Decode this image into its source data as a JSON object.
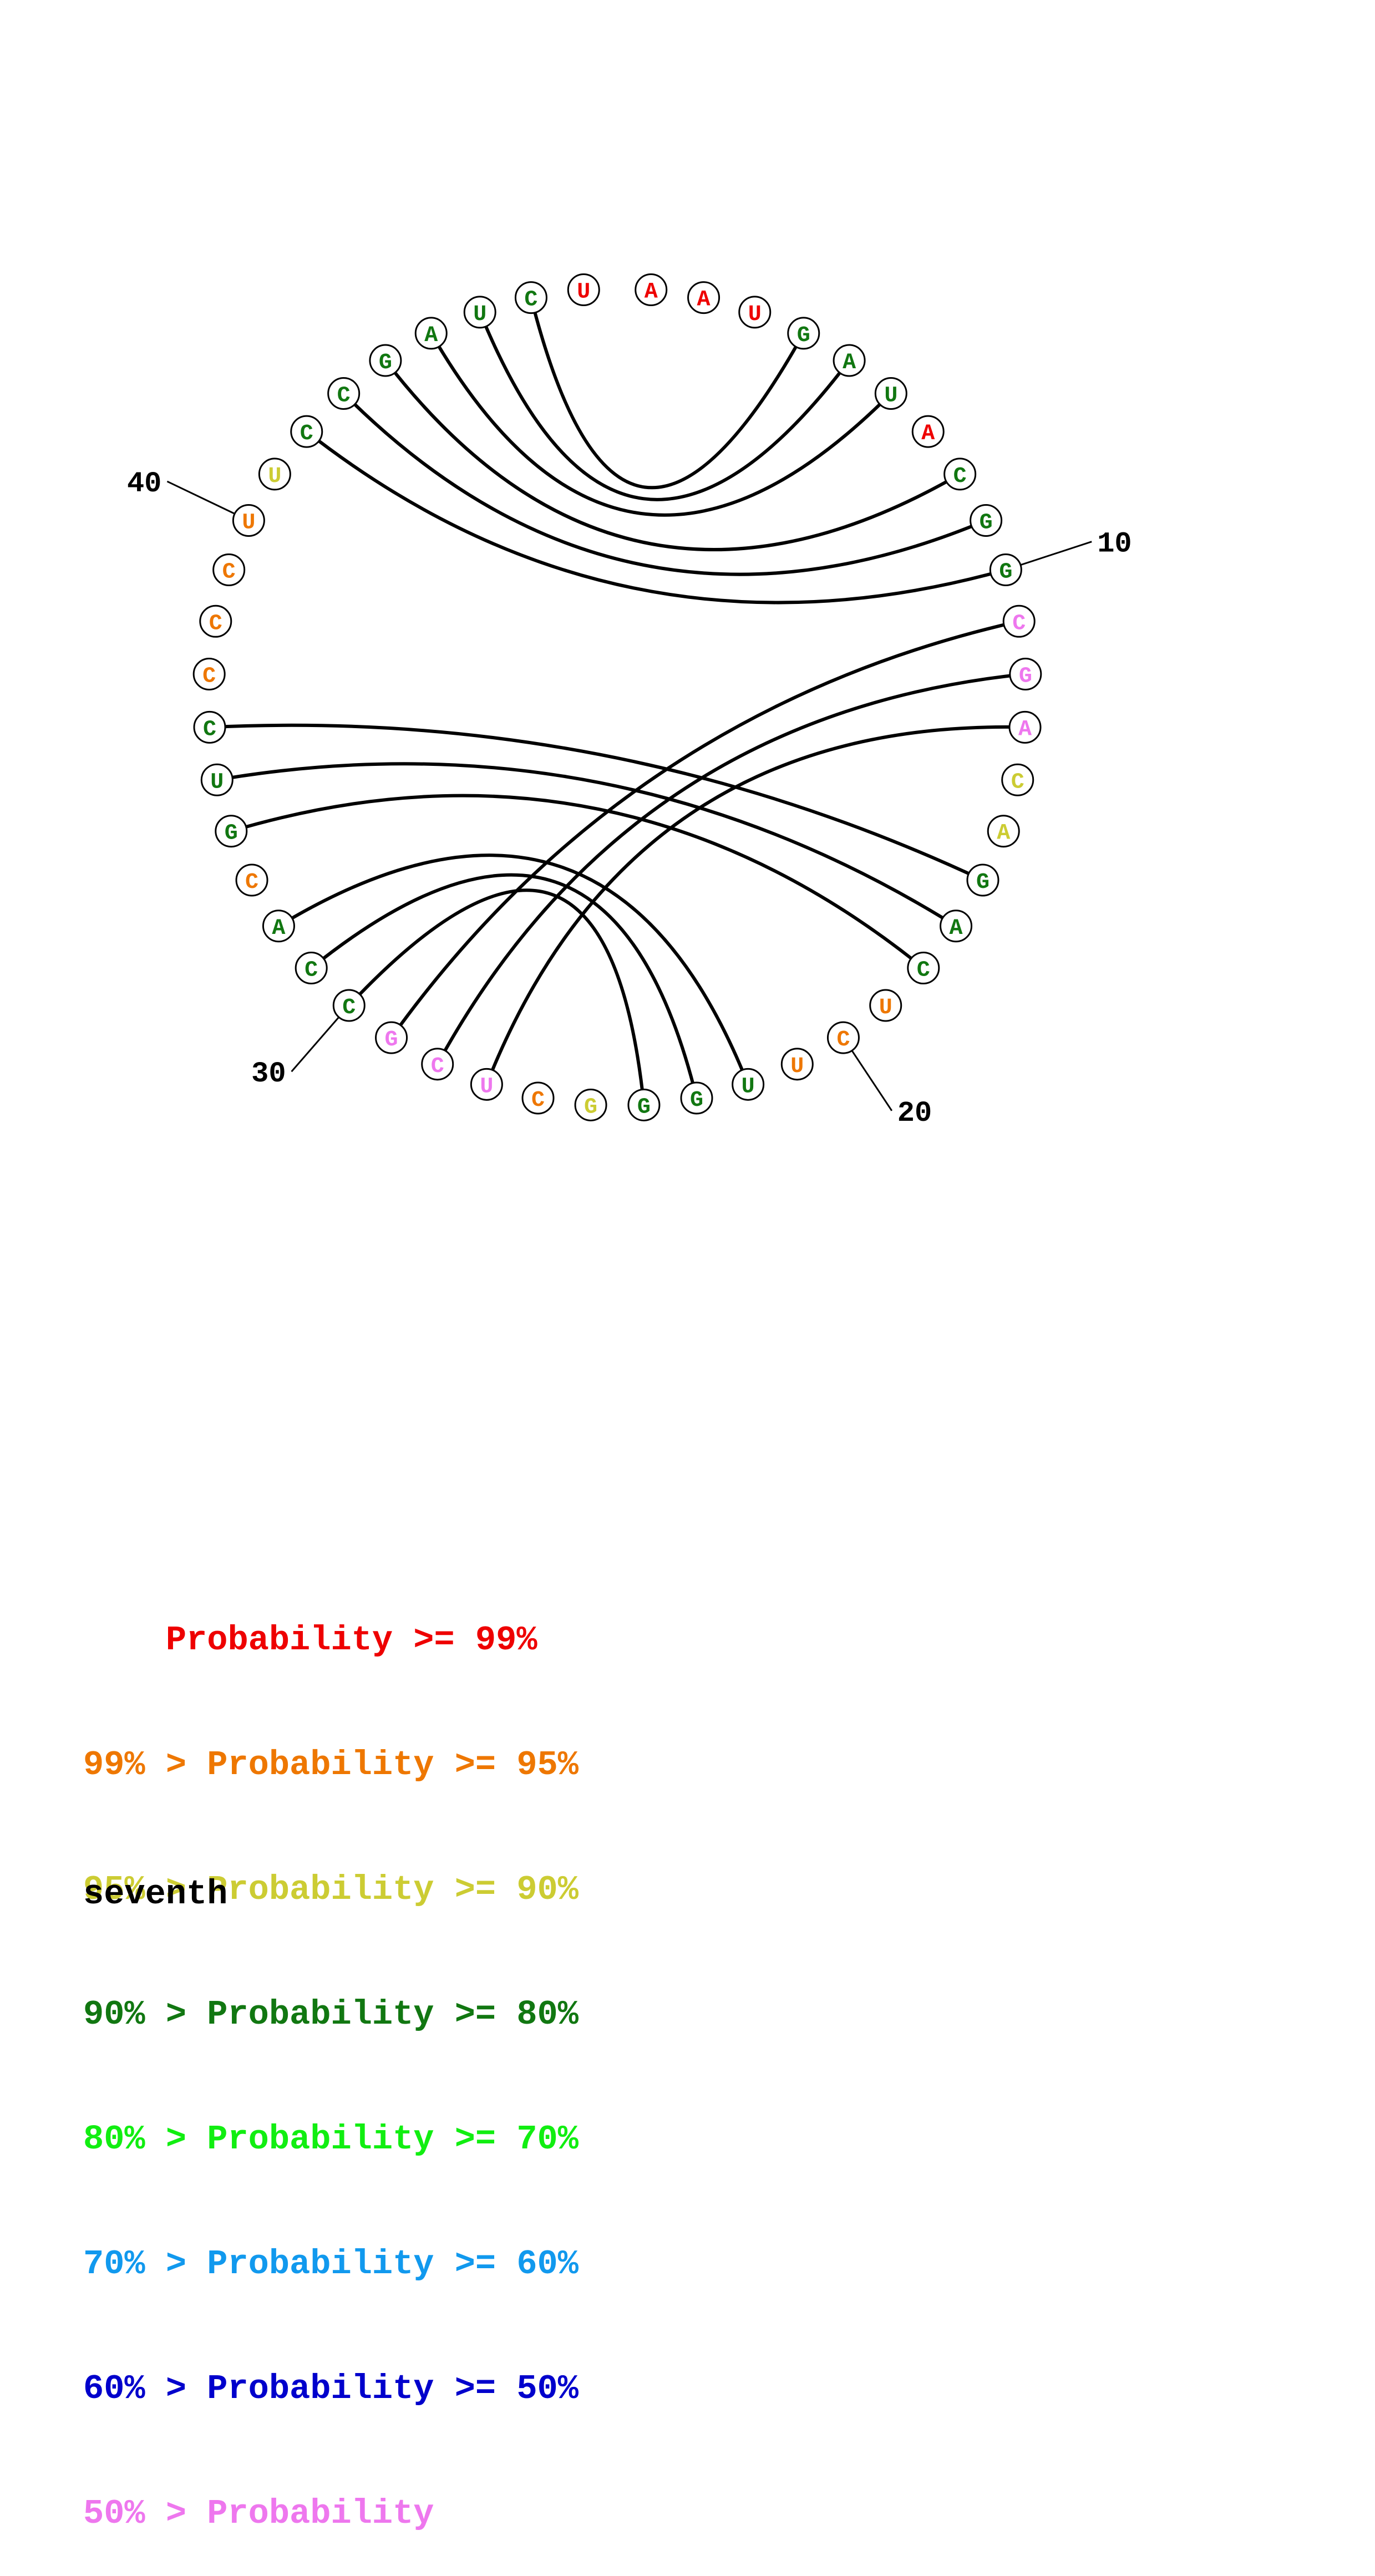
{
  "colors": {
    "p99": "#ee0000",
    "p95": "#ee7700",
    "p90": "#cccc33",
    "p80": "#117711",
    "p70": "#11ee11",
    "p60": "#1199ee",
    "p50": "#0000cc",
    "plow": "#ee77ee"
  },
  "sequence": [
    {
      "n": 1,
      "base": "A",
      "prob": "p99"
    },
    {
      "n": 2,
      "base": "A",
      "prob": "p99"
    },
    {
      "n": 3,
      "base": "U",
      "prob": "p99"
    },
    {
      "n": 4,
      "base": "G",
      "prob": "p80"
    },
    {
      "n": 5,
      "base": "A",
      "prob": "p80"
    },
    {
      "n": 6,
      "base": "U",
      "prob": "p80"
    },
    {
      "n": 7,
      "base": "A",
      "prob": "p99"
    },
    {
      "n": 8,
      "base": "C",
      "prob": "p80"
    },
    {
      "n": 9,
      "base": "G",
      "prob": "p80"
    },
    {
      "n": 10,
      "base": "G",
      "prob": "p80"
    },
    {
      "n": 11,
      "base": "C",
      "prob": "plow"
    },
    {
      "n": 12,
      "base": "G",
      "prob": "plow"
    },
    {
      "n": 13,
      "base": "A",
      "prob": "plow"
    },
    {
      "n": 14,
      "base": "C",
      "prob": "p90"
    },
    {
      "n": 15,
      "base": "A",
      "prob": "p90"
    },
    {
      "n": 16,
      "base": "G",
      "prob": "p80"
    },
    {
      "n": 17,
      "base": "A",
      "prob": "p80"
    },
    {
      "n": 18,
      "base": "C",
      "prob": "p80"
    },
    {
      "n": 19,
      "base": "U",
      "prob": "p95"
    },
    {
      "n": 20,
      "base": "C",
      "prob": "p95"
    },
    {
      "n": 21,
      "base": "U",
      "prob": "p95"
    },
    {
      "n": 22,
      "base": "U",
      "prob": "p80"
    },
    {
      "n": 23,
      "base": "G",
      "prob": "p80"
    },
    {
      "n": 24,
      "base": "G",
      "prob": "p80"
    },
    {
      "n": 25,
      "base": "G",
      "prob": "p90"
    },
    {
      "n": 26,
      "base": "C",
      "prob": "p95"
    },
    {
      "n": 27,
      "base": "U",
      "prob": "plow"
    },
    {
      "n": 28,
      "base": "C",
      "prob": "plow"
    },
    {
      "n": 29,
      "base": "G",
      "prob": "plow"
    },
    {
      "n": 30,
      "base": "C",
      "prob": "p80"
    },
    {
      "n": 31,
      "base": "C",
      "prob": "p80"
    },
    {
      "n": 32,
      "base": "A",
      "prob": "p80"
    },
    {
      "n": 33,
      "base": "C",
      "prob": "p95"
    },
    {
      "n": 34,
      "base": "G",
      "prob": "p80"
    },
    {
      "n": 35,
      "base": "U",
      "prob": "p80"
    },
    {
      "n": 36,
      "base": "C",
      "prob": "p80"
    },
    {
      "n": 37,
      "base": "C",
      "prob": "p95"
    },
    {
      "n": 38,
      "base": "C",
      "prob": "p95"
    },
    {
      "n": 39,
      "base": "C",
      "prob": "p95"
    },
    {
      "n": 40,
      "base": "U",
      "prob": "p95"
    },
    {
      "n": 41,
      "base": "U",
      "prob": "p90"
    },
    {
      "n": 42,
      "base": "C",
      "prob": "p80"
    },
    {
      "n": 43,
      "base": "C",
      "prob": "p80"
    },
    {
      "n": 44,
      "base": "G",
      "prob": "p80"
    },
    {
      "n": 45,
      "base": "A",
      "prob": "p80"
    },
    {
      "n": 46,
      "base": "U",
      "prob": "p80"
    },
    {
      "n": 47,
      "base": "C",
      "prob": "p80"
    },
    {
      "n": 48,
      "base": "U",
      "prob": "p99"
    }
  ],
  "pairs": [
    [
      4,
      47
    ],
    [
      5,
      46
    ],
    [
      6,
      45
    ],
    [
      8,
      44
    ],
    [
      9,
      43
    ],
    [
      10,
      42
    ],
    [
      11,
      29
    ],
    [
      12,
      28
    ],
    [
      13,
      27
    ],
    [
      16,
      36
    ],
    [
      17,
      35
    ],
    [
      18,
      34
    ],
    [
      22,
      32
    ],
    [
      23,
      31
    ],
    [
      24,
      30
    ]
  ],
  "index_labels": [
    {
      "n": 10,
      "text": "10"
    },
    {
      "n": 20,
      "text": "20"
    },
    {
      "n": 30,
      "text": "30"
    },
    {
      "n": 40,
      "text": "40"
    }
  ],
  "legend": [
    {
      "text": "    Probability >= 99%",
      "color": "p99"
    },
    {
      "text": "99% > Probability >= 95%",
      "color": "p95"
    },
    {
      "text": "95% > Probability >= 90%",
      "color": "p90"
    },
    {
      "text": "90% > Probability >= 80%",
      "color": "p80"
    },
    {
      "text": "80% > Probability >= 70%",
      "color": "p70"
    },
    {
      "text": "70% > Probability >= 60%",
      "color": "p60"
    },
    {
      "text": "60% > Probability >= 50%",
      "color": "p50"
    },
    {
      "text": "50% > Probability",
      "color": "plow"
    }
  ],
  "title": "seventh"
}
